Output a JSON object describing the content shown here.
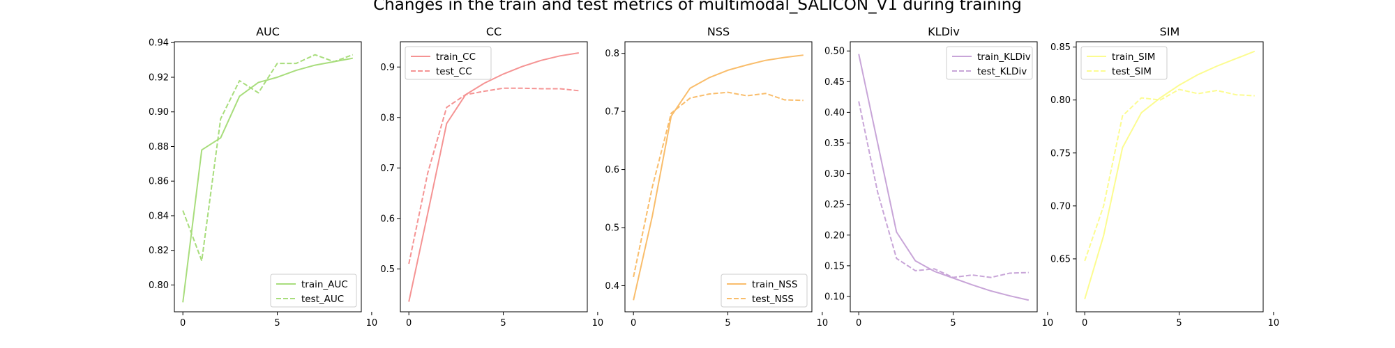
{
  "figure": {
    "title": "Changes in the train and test metrics of multimodal_SALICON_V1 during training"
  },
  "chart_data": [
    {
      "type": "line",
      "title": "AUC",
      "xlabel": "",
      "ylabel": "",
      "x": [
        0,
        1,
        2,
        3,
        4,
        5,
        6,
        7,
        8,
        9
      ],
      "xlim": [
        -0.45,
        9.45
      ],
      "ylim": [
        0.7845,
        0.9405
      ],
      "xticks": [
        0,
        5,
        10
      ],
      "yticks": [
        0.8,
        0.82,
        0.84,
        0.86,
        0.88,
        0.9,
        0.92,
        0.94
      ],
      "ytick_labels": [
        "0.80",
        "0.82",
        "0.84",
        "0.86",
        "0.88",
        "0.90",
        "0.92",
        "0.94"
      ],
      "legend_loc": "lower-right",
      "color": "#a8dd7c",
      "series": [
        {
          "name": "train_AUC",
          "style": "solid",
          "values": [
            0.79,
            0.878,
            0.885,
            0.909,
            0.917,
            0.92,
            0.924,
            0.927,
            0.929,
            0.931
          ]
        },
        {
          "name": "test_AUC",
          "style": "dashed",
          "values": [
            0.843,
            0.814,
            0.896,
            0.918,
            0.911,
            0.928,
            0.928,
            0.933,
            0.929,
            0.933
          ]
        }
      ]
    },
    {
      "type": "line",
      "title": "CC",
      "xlabel": "",
      "ylabel": "",
      "x": [
        0,
        1,
        2,
        3,
        4,
        5,
        6,
        7,
        8,
        9
      ],
      "xlim": [
        -0.45,
        9.45
      ],
      "ylim": [
        0.415,
        0.95
      ],
      "xticks": [
        0,
        5,
        10
      ],
      "yticks": [
        0.5,
        0.6,
        0.7,
        0.8,
        0.9
      ],
      "ytick_labels": [
        "0.5",
        "0.6",
        "0.7",
        "0.8",
        "0.9"
      ],
      "legend_loc": "upper-left",
      "color": "#f59393",
      "series": [
        {
          "name": "train_CC",
          "style": "solid",
          "values": [
            0.435,
            0.61,
            0.788,
            0.845,
            0.868,
            0.886,
            0.901,
            0.913,
            0.922,
            0.928
          ]
        },
        {
          "name": "test_CC",
          "style": "dashed",
          "values": [
            0.51,
            0.69,
            0.82,
            0.845,
            0.852,
            0.858,
            0.858,
            0.857,
            0.857,
            0.853
          ]
        }
      ]
    },
    {
      "type": "line",
      "title": "NSS",
      "xlabel": "",
      "ylabel": "",
      "x": [
        0,
        1,
        2,
        3,
        4,
        5,
        6,
        7,
        8,
        9
      ],
      "xlim": [
        -0.45,
        9.45
      ],
      "ylim": [
        0.355,
        0.82
      ],
      "xticks": [
        0,
        5,
        10
      ],
      "yticks": [
        0.4,
        0.5,
        0.6,
        0.7,
        0.8
      ],
      "ytick_labels": [
        "0.4",
        "0.5",
        "0.6",
        "0.7",
        "0.8"
      ],
      "legend_loc": "lower-right",
      "color": "#f9bd6b",
      "series": [
        {
          "name": "train_NSS",
          "style": "solid",
          "values": [
            0.375,
            0.52,
            0.692,
            0.74,
            0.758,
            0.771,
            0.78,
            0.788,
            0.793,
            0.797
          ]
        },
        {
          "name": "test_NSS",
          "style": "dashed",
          "values": [
            0.415,
            0.57,
            0.697,
            0.723,
            0.73,
            0.733,
            0.727,
            0.731,
            0.72,
            0.719
          ]
        }
      ]
    },
    {
      "type": "line",
      "title": "KLDiv",
      "xlabel": "",
      "ylabel": "",
      "x": [
        0,
        1,
        2,
        3,
        4,
        5,
        6,
        7,
        8,
        9
      ],
      "xlim": [
        -0.45,
        9.45
      ],
      "ylim": [
        0.075,
        0.515
      ],
      "xticks": [
        0,
        5,
        10
      ],
      "yticks": [
        0.1,
        0.15,
        0.2,
        0.25,
        0.3,
        0.35,
        0.4,
        0.45,
        0.5
      ],
      "ytick_labels": [
        "0.10",
        "0.15",
        "0.20",
        "0.25",
        "0.30",
        "0.35",
        "0.40",
        "0.45",
        "0.50"
      ],
      "legend_loc": "upper-right",
      "color": "#c8a5d8",
      "series": [
        {
          "name": "train_KLDiv",
          "style": "solid",
          "values": [
            0.495,
            0.35,
            0.205,
            0.158,
            0.141,
            0.13,
            0.119,
            0.109,
            0.101,
            0.094
          ]
        },
        {
          "name": "test_KLDiv",
          "style": "dashed",
          "values": [
            0.418,
            0.27,
            0.162,
            0.142,
            0.145,
            0.131,
            0.135,
            0.131,
            0.138,
            0.139
          ]
        }
      ]
    },
    {
      "type": "line",
      "title": "SIM",
      "xlabel": "",
      "ylabel": "",
      "x": [
        0,
        1,
        2,
        3,
        4,
        5,
        6,
        7,
        8,
        9
      ],
      "xlim": [
        -0.45,
        9.45
      ],
      "ylim": [
        0.6,
        0.855
      ],
      "xticks": [
        0,
        5,
        10
      ],
      "yticks": [
        0.65,
        0.7,
        0.75,
        0.8,
        0.85
      ],
      "ytick_labels": [
        "0.65",
        "0.70",
        "0.75",
        "0.80",
        "0.85"
      ],
      "legend_loc": "upper-left",
      "color": "#fcfc90",
      "series": [
        {
          "name": "train_SIM",
          "style": "solid",
          "values": [
            0.612,
            0.672,
            0.755,
            0.788,
            0.802,
            0.814,
            0.824,
            0.832,
            0.839,
            0.846
          ]
        },
        {
          "name": "test_SIM",
          "style": "dashed",
          "values": [
            0.648,
            0.7,
            0.785,
            0.802,
            0.8,
            0.81,
            0.806,
            0.809,
            0.805,
            0.804
          ]
        }
      ]
    }
  ]
}
